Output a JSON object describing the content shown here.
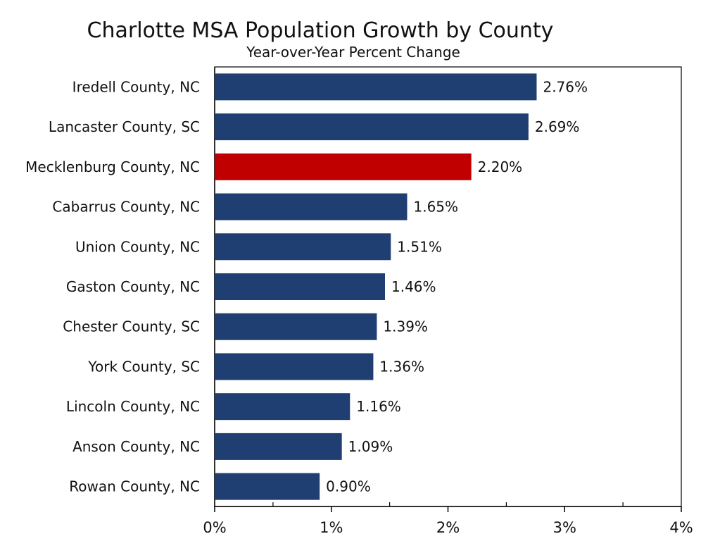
{
  "chart_data": {
    "type": "bar",
    "orientation": "horizontal",
    "title": "Charlotte MSA Population Growth by County",
    "subtitle": "Year-over-Year Percent Change",
    "xlabel": "",
    "ylabel": "",
    "xlim": [
      0,
      4
    ],
    "x_ticks": [
      0,
      1,
      2,
      3,
      4
    ],
    "x_tick_labels": [
      "0%",
      "1%",
      "2%",
      "3%",
      "4%"
    ],
    "grid": false,
    "legend": "none",
    "categories": [
      "Iredell County, NC",
      "Lancaster County, SC",
      "Mecklenburg County, NC",
      "Cabarrus County, NC",
      "Union County, NC",
      "Gaston County, NC",
      "Chester County, SC",
      "York County, SC",
      "Lincoln County, NC",
      "Anson County, NC",
      "Rowan County, NC"
    ],
    "values": [
      2.76,
      2.69,
      2.2,
      1.65,
      1.51,
      1.46,
      1.39,
      1.36,
      1.16,
      1.09,
      0.9
    ],
    "data_labels": [
      "2.76%",
      "2.69%",
      "2.20%",
      "1.65%",
      "1.51%",
      "1.46%",
      "1.39%",
      "1.36%",
      "1.16%",
      "1.09%",
      "0.90%"
    ],
    "highlight_index": 2,
    "colors": {
      "bar": "#1f3e72",
      "highlight": "#c00000"
    }
  }
}
